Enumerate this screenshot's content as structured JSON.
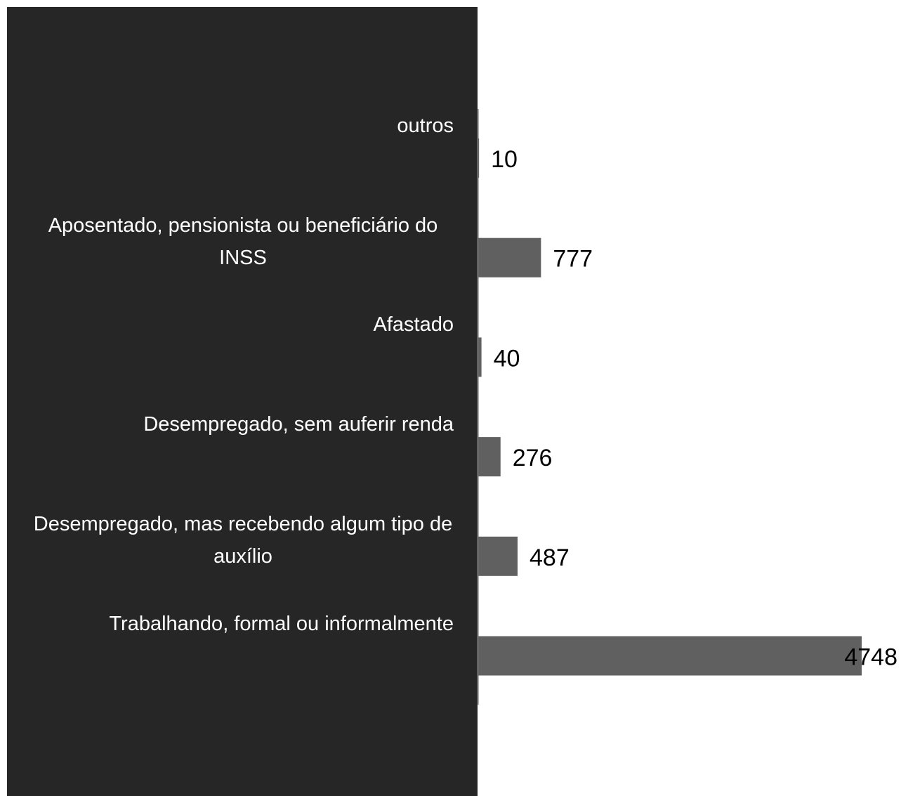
{
  "chart_data": {
    "type": "bar",
    "orientation": "horizontal",
    "categories": [
      "outros",
      "Aposentado, pensionista ou beneficiário do INSS",
      "Afastado",
      "Desempregado, sem auferir renda",
      "Desempregado, mas recebendo algum tipo de auxílio",
      "Trabalhando, formal ou informalmente"
    ],
    "values": [
      10,
      777,
      40,
      276,
      487,
      4748
    ],
    "color": "#606060"
  }
}
